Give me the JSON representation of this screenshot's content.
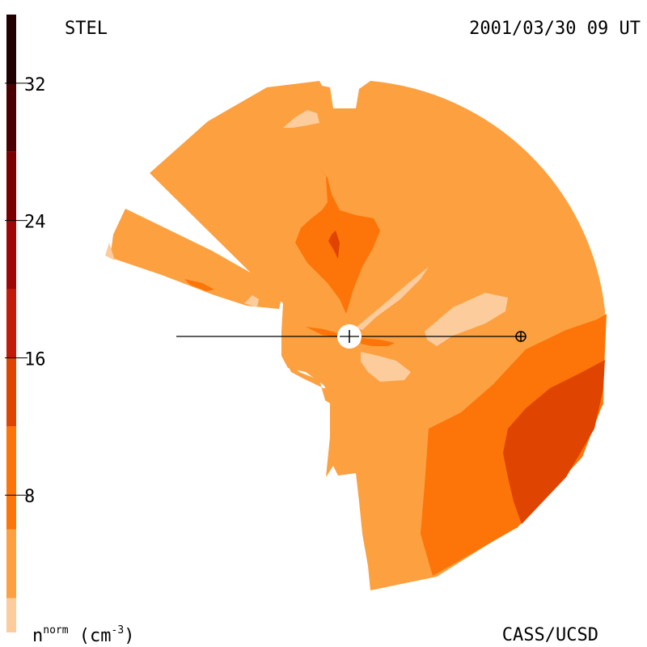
{
  "chart_data": {
    "type": "heatmap",
    "title": "STEL",
    "timestamp": "2001/03/30 09 UT",
    "credit": "CASS/UCSD",
    "colorbar": {
      "label_base": "n",
      "label_sup": "norm",
      "label_unit_open": " (cm",
      "label_unit_sup": "-3",
      "label_unit_close": ")",
      "range": [
        0,
        36
      ],
      "ticks": [
        {
          "value": 8,
          "label": "8"
        },
        {
          "value": 16,
          "label": "16"
        },
        {
          "value": 24,
          "label": "24"
        },
        {
          "value": 32,
          "label": "32"
        }
      ],
      "bands": [
        {
          "from": 0,
          "to": 2,
          "color": "#fdcc9c"
        },
        {
          "from": 2,
          "to": 6,
          "color": "#fda040"
        },
        {
          "from": 6,
          "to": 12,
          "color": "#fd7408"
        },
        {
          "from": 12,
          "to": 16,
          "color": "#df4400"
        },
        {
          "from": 16,
          "to": 20,
          "color": "#c31b0a"
        },
        {
          "from": 20,
          "to": 24,
          "color": "#a10606"
        },
        {
          "from": 24,
          "to": 28,
          "color": "#7a0000"
        },
        {
          "from": 28,
          "to": 32,
          "color": "#4a0000"
        },
        {
          "from": 32,
          "to": 36,
          "color": "#230000"
        }
      ]
    },
    "markers": {
      "sun": "sun-center",
      "earth": "earth-symbol"
    }
  },
  "colors": {
    "lightest": "#fdcc9c",
    "light": "#fda040",
    "medium": "#fd7408",
    "dark": "#df4400",
    "darker": "#c43408"
  }
}
